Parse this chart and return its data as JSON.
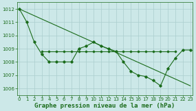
{
  "xlabel": "Graphe pression niveau de la mer (hPa)",
  "x": [
    0,
    1,
    2,
    3,
    4,
    5,
    6,
    7,
    8,
    9,
    10,
    11,
    12,
    13,
    14,
    15,
    16,
    17,
    18,
    19,
    20,
    21,
    22,
    23
  ],
  "line1_x": [
    0,
    23
  ],
  "line1_y": [
    1012.0,
    1006.2
  ],
  "line2": [
    1012.0,
    1011.0,
    1009.5,
    1008.6,
    1008.0,
    1008.0,
    1008.0,
    1008.0,
    1009.0,
    1009.2,
    1009.5,
    1009.2,
    1009.0,
    1008.8,
    1008.0,
    1007.3,
    1007.0,
    1006.9,
    1006.6,
    1006.2,
    1007.5,
    1008.3,
    1008.9,
    1008.9
  ],
  "line3_x": [
    3,
    4,
    5,
    6,
    7,
    8,
    9,
    10,
    11,
    12,
    13,
    14,
    15,
    16,
    17,
    18,
    19,
    20,
    21
  ],
  "line3_y": [
    1008.8,
    1008.8,
    1008.8,
    1008.8,
    1008.8,
    1008.8,
    1008.8,
    1008.8,
    1008.8,
    1008.8,
    1008.8,
    1008.8,
    1008.8,
    1008.8,
    1008.8,
    1008.8,
    1008.8,
    1008.8,
    1008.8
  ],
  "line_color": "#1a6b1a",
  "bg_color": "#cce8e8",
  "grid_color": "#aacece",
  "text_color": "#1a6b1a",
  "ylim": [
    1005.5,
    1012.5
  ],
  "yticks": [
    1006,
    1007,
    1008,
    1009,
    1010,
    1011,
    1012
  ],
  "xticks": [
    0,
    1,
    2,
    3,
    4,
    5,
    6,
    7,
    8,
    9,
    10,
    11,
    12,
    13,
    14,
    15,
    16,
    17,
    18,
    19,
    20,
    21,
    22,
    23
  ],
  "label_fontsize": 6.5,
  "tick_fontsize": 5.0
}
